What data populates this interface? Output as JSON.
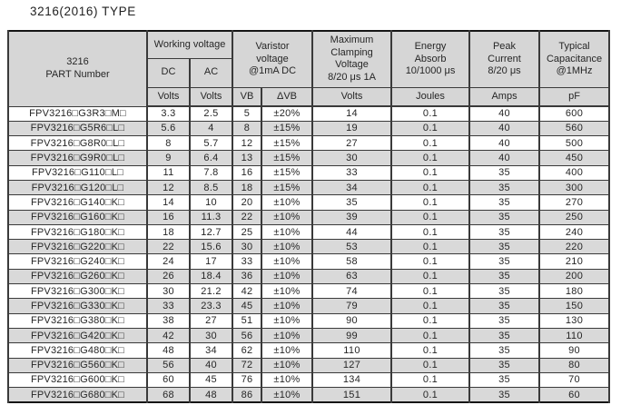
{
  "page": {
    "title": "3216(2016) TYPE"
  },
  "table": {
    "header": {
      "part_number": "3216\nPART Number",
      "working_voltage": "Working voltage",
      "dc": "DC",
      "ac": "AC",
      "varistor_voltage": "Varistor\nvoltage\n@1mA DC",
      "max_clamping_voltage": "Maximum\nClamping\nVoltage\n8/20 μs 1A",
      "energy_absorb": "Energy\nAbsorb\n10/1000 μs",
      "peak_current": "Peak\nCurrent\n8/20 μs",
      "typical_capacitance": "Typical\nCapacitance\n@1MHz",
      "units": [
        "Volts",
        "Volts",
        "VB",
        "ΔVB",
        "Volts",
        "Joules",
        "Amps",
        "pF"
      ]
    },
    "rows": [
      [
        "FPV3216□G3R3□M□",
        "3.3",
        "2.5",
        "5",
        "±20%",
        "14",
        "0.1",
        "40",
        "600"
      ],
      [
        "FPV3216□G5R6□L□",
        "5.6",
        "4",
        "8",
        "±15%",
        "19",
        "0.1",
        "40",
        "560"
      ],
      [
        "FPV3216□G8R0□L□",
        "8",
        "5.7",
        "12",
        "±15%",
        "27",
        "0.1",
        "40",
        "500"
      ],
      [
        "FPV3216□G9R0□L□",
        "9",
        "6.4",
        "13",
        "±15%",
        "30",
        "0.1",
        "40",
        "450"
      ],
      [
        "FPV3216□G110□L□",
        "11",
        "7.8",
        "16",
        "±15%",
        "33",
        "0.1",
        "35",
        "400"
      ],
      [
        "FPV3216□G120□L□",
        "12",
        "8.5",
        "18",
        "±15%",
        "34",
        "0.1",
        "35",
        "300"
      ],
      [
        "FPV3216□G140□K□",
        "14",
        "10",
        "20",
        "±10%",
        "35",
        "0.1",
        "35",
        "270"
      ],
      [
        "FPV3216□G160□K□",
        "16",
        "11.3",
        "22",
        "±10%",
        "39",
        "0.1",
        "35",
        "250"
      ],
      [
        "FPV3216□G180□K□",
        "18",
        "12.7",
        "25",
        "±10%",
        "44",
        "0.1",
        "35",
        "240"
      ],
      [
        "FPV3216□G220□K□",
        "22",
        "15.6",
        "30",
        "±10%",
        "53",
        "0.1",
        "35",
        "220"
      ],
      [
        "FPV3216□G240□K□",
        "24",
        "17",
        "33",
        "±10%",
        "58",
        "0.1",
        "35",
        "210"
      ],
      [
        "FPV3216□G260□K□",
        "26",
        "18.4",
        "36",
        "±10%",
        "63",
        "0.1",
        "35",
        "200"
      ],
      [
        "FPV3216□G300□K□",
        "30",
        "21.2",
        "42",
        "±10%",
        "74",
        "0.1",
        "35",
        "180"
      ],
      [
        "FPV3216□G330□K□",
        "33",
        "23.3",
        "45",
        "±10%",
        "79",
        "0.1",
        "35",
        "150"
      ],
      [
        "FPV3216□G380□K□",
        "38",
        "27",
        "51",
        "±10%",
        "90",
        "0.1",
        "35",
        "130"
      ],
      [
        "FPV3216□G420□K□",
        "42",
        "30",
        "56",
        "±10%",
        "99",
        "0.1",
        "35",
        "110"
      ],
      [
        "FPV3216□G480□K□",
        "48",
        "34",
        "62",
        "±10%",
        "110",
        "0.1",
        "35",
        "90"
      ],
      [
        "FPV3216□G560□K□",
        "56",
        "40",
        "72",
        "±10%",
        "127",
        "0.1",
        "35",
        "80"
      ],
      [
        "FPV3216□G600□K□",
        "60",
        "45",
        "76",
        "±10%",
        "134",
        "0.1",
        "35",
        "70"
      ],
      [
        "FPV3216□G680□K□",
        "68",
        "48",
        "86",
        "±10%",
        "151",
        "0.1",
        "35",
        "60"
      ]
    ]
  },
  "colors": {
    "header_bg": "#d6d6d6",
    "alt_row_bg": "#d9d9d9",
    "border": "#3a3a3a",
    "outer_border": "#161616",
    "text": "#262626"
  }
}
